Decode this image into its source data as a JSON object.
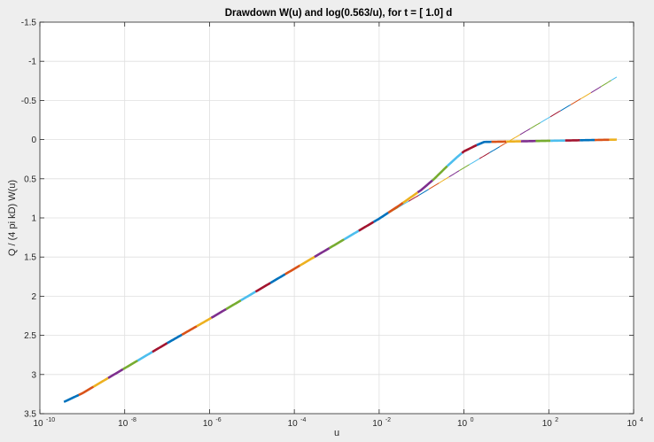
{
  "chart_data": {
    "type": "line",
    "title": "Drawdown W(u) and log(0.563/u), for t = [ 1.0] d",
    "xlabel": "u",
    "ylabel": "Q / (4 pi kD) W(u)",
    "xscale": "log",
    "x_base": 10,
    "xlim": [
      1e-10,
      10000.0
    ],
    "ylim": [
      -1.5,
      3.5
    ],
    "y_reversed": true,
    "grid": true,
    "x_tick_exponents": [
      "-10",
      "-8",
      "-6",
      "-4",
      "-2",
      "0",
      "2",
      "4"
    ],
    "y_ticks": [
      -1.5,
      -1,
      -0.5,
      0,
      0.5,
      1,
      1.5,
      2,
      2.5,
      3,
      3.5
    ],
    "y_tick_labels": [
      "-1.5",
      "-1",
      "-0.5",
      "0",
      "0.5",
      "1",
      "1.5",
      "2",
      "2.5",
      "3",
      "3.5"
    ],
    "series": [
      {
        "x": [
          3.7e-10,
          1e-09,
          1e-08,
          1e-07,
          1e-06,
          1e-05,
          0.0001,
          0.001,
          0.01,
          0.1,
          1,
          10,
          100,
          1000,
          4000
        ],
        "values": [
          3.35,
          3.24,
          2.92,
          2.6,
          2.29,
          1.97,
          1.65,
          1.33,
          1.01,
          0.69,
          0.36,
          0.04,
          -0.28,
          -0.6,
          -0.8
        ]
      },
      {
        "x": [
          3.7e-10,
          1e-09,
          1e-08,
          1e-07,
          1e-06,
          1e-05,
          0.0001,
          0.001,
          0.01,
          0.03,
          0.1,
          0.2,
          0.4,
          0.7,
          1,
          2,
          3,
          4000
        ],
        "values": [
          3.35,
          3.24,
          2.92,
          2.6,
          2.29,
          1.97,
          1.65,
          1.33,
          1.01,
          0.84,
          0.64,
          0.5,
          0.34,
          0.22,
          0.15,
          0.07,
          0.03,
          0.0
        ]
      }
    ],
    "colors": {
      "figure_background": "#eeeeee",
      "axes_background": "#ffffff",
      "grid": "#dfdfdf",
      "axis": "#262626",
      "line_segments": [
        "#0072bd",
        "#d95319",
        "#edb120",
        "#7e2f8e",
        "#77ac30",
        "#4dbeee",
        "#a2142f"
      ]
    }
  }
}
